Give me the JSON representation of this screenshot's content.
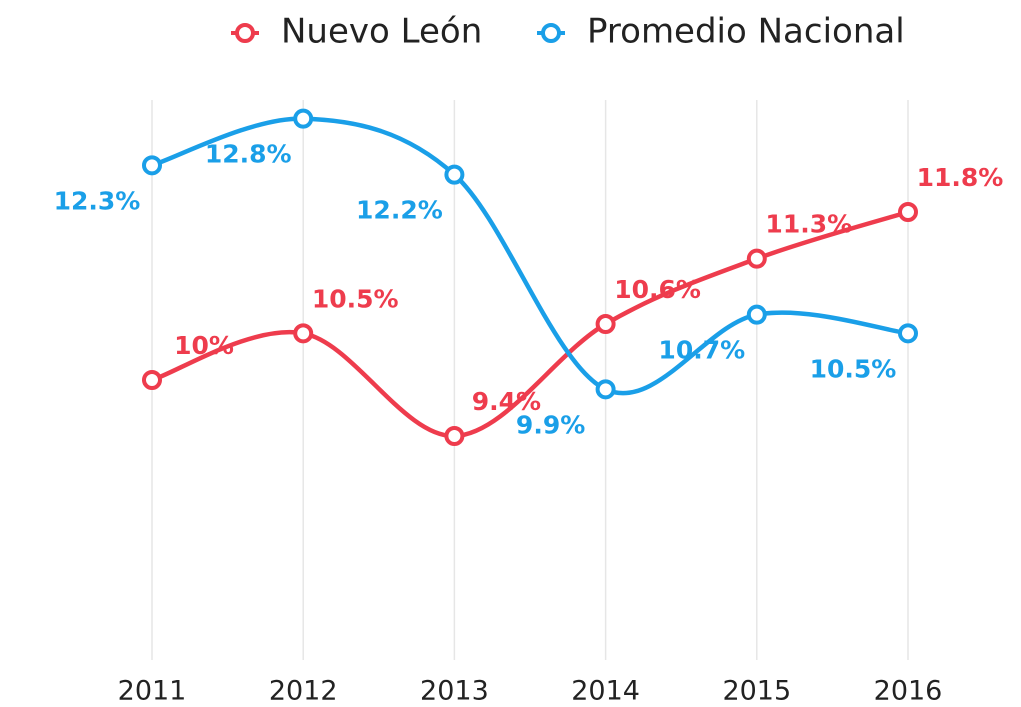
{
  "chart_data": {
    "type": "line",
    "categories": [
      "2011",
      "2012",
      "2013",
      "2014",
      "2015",
      "2016"
    ],
    "series": [
      {
        "name": "Nuevo León",
        "color": "#ee3c4d",
        "values": [
          10,
          10.5,
          9.4,
          10.6,
          11.3,
          11.8
        ],
        "value_labels": [
          "10%",
          "10.5%",
          "9.4%",
          "10.6%",
          "11.3%",
          "11.8%"
        ]
      },
      {
        "name": "Promedio Nacional",
        "color": "#1a9fe8",
        "values": [
          12.3,
          12.8,
          12.2,
          9.9,
          10.7,
          10.5
        ],
        "value_labels": [
          "12.3%",
          "12.8%",
          "12.2%",
          "9.9%",
          "10.7%",
          "10.5%"
        ]
      }
    ],
    "ylim": [
      7,
      13
    ],
    "grid": true,
    "legend": "top"
  }
}
